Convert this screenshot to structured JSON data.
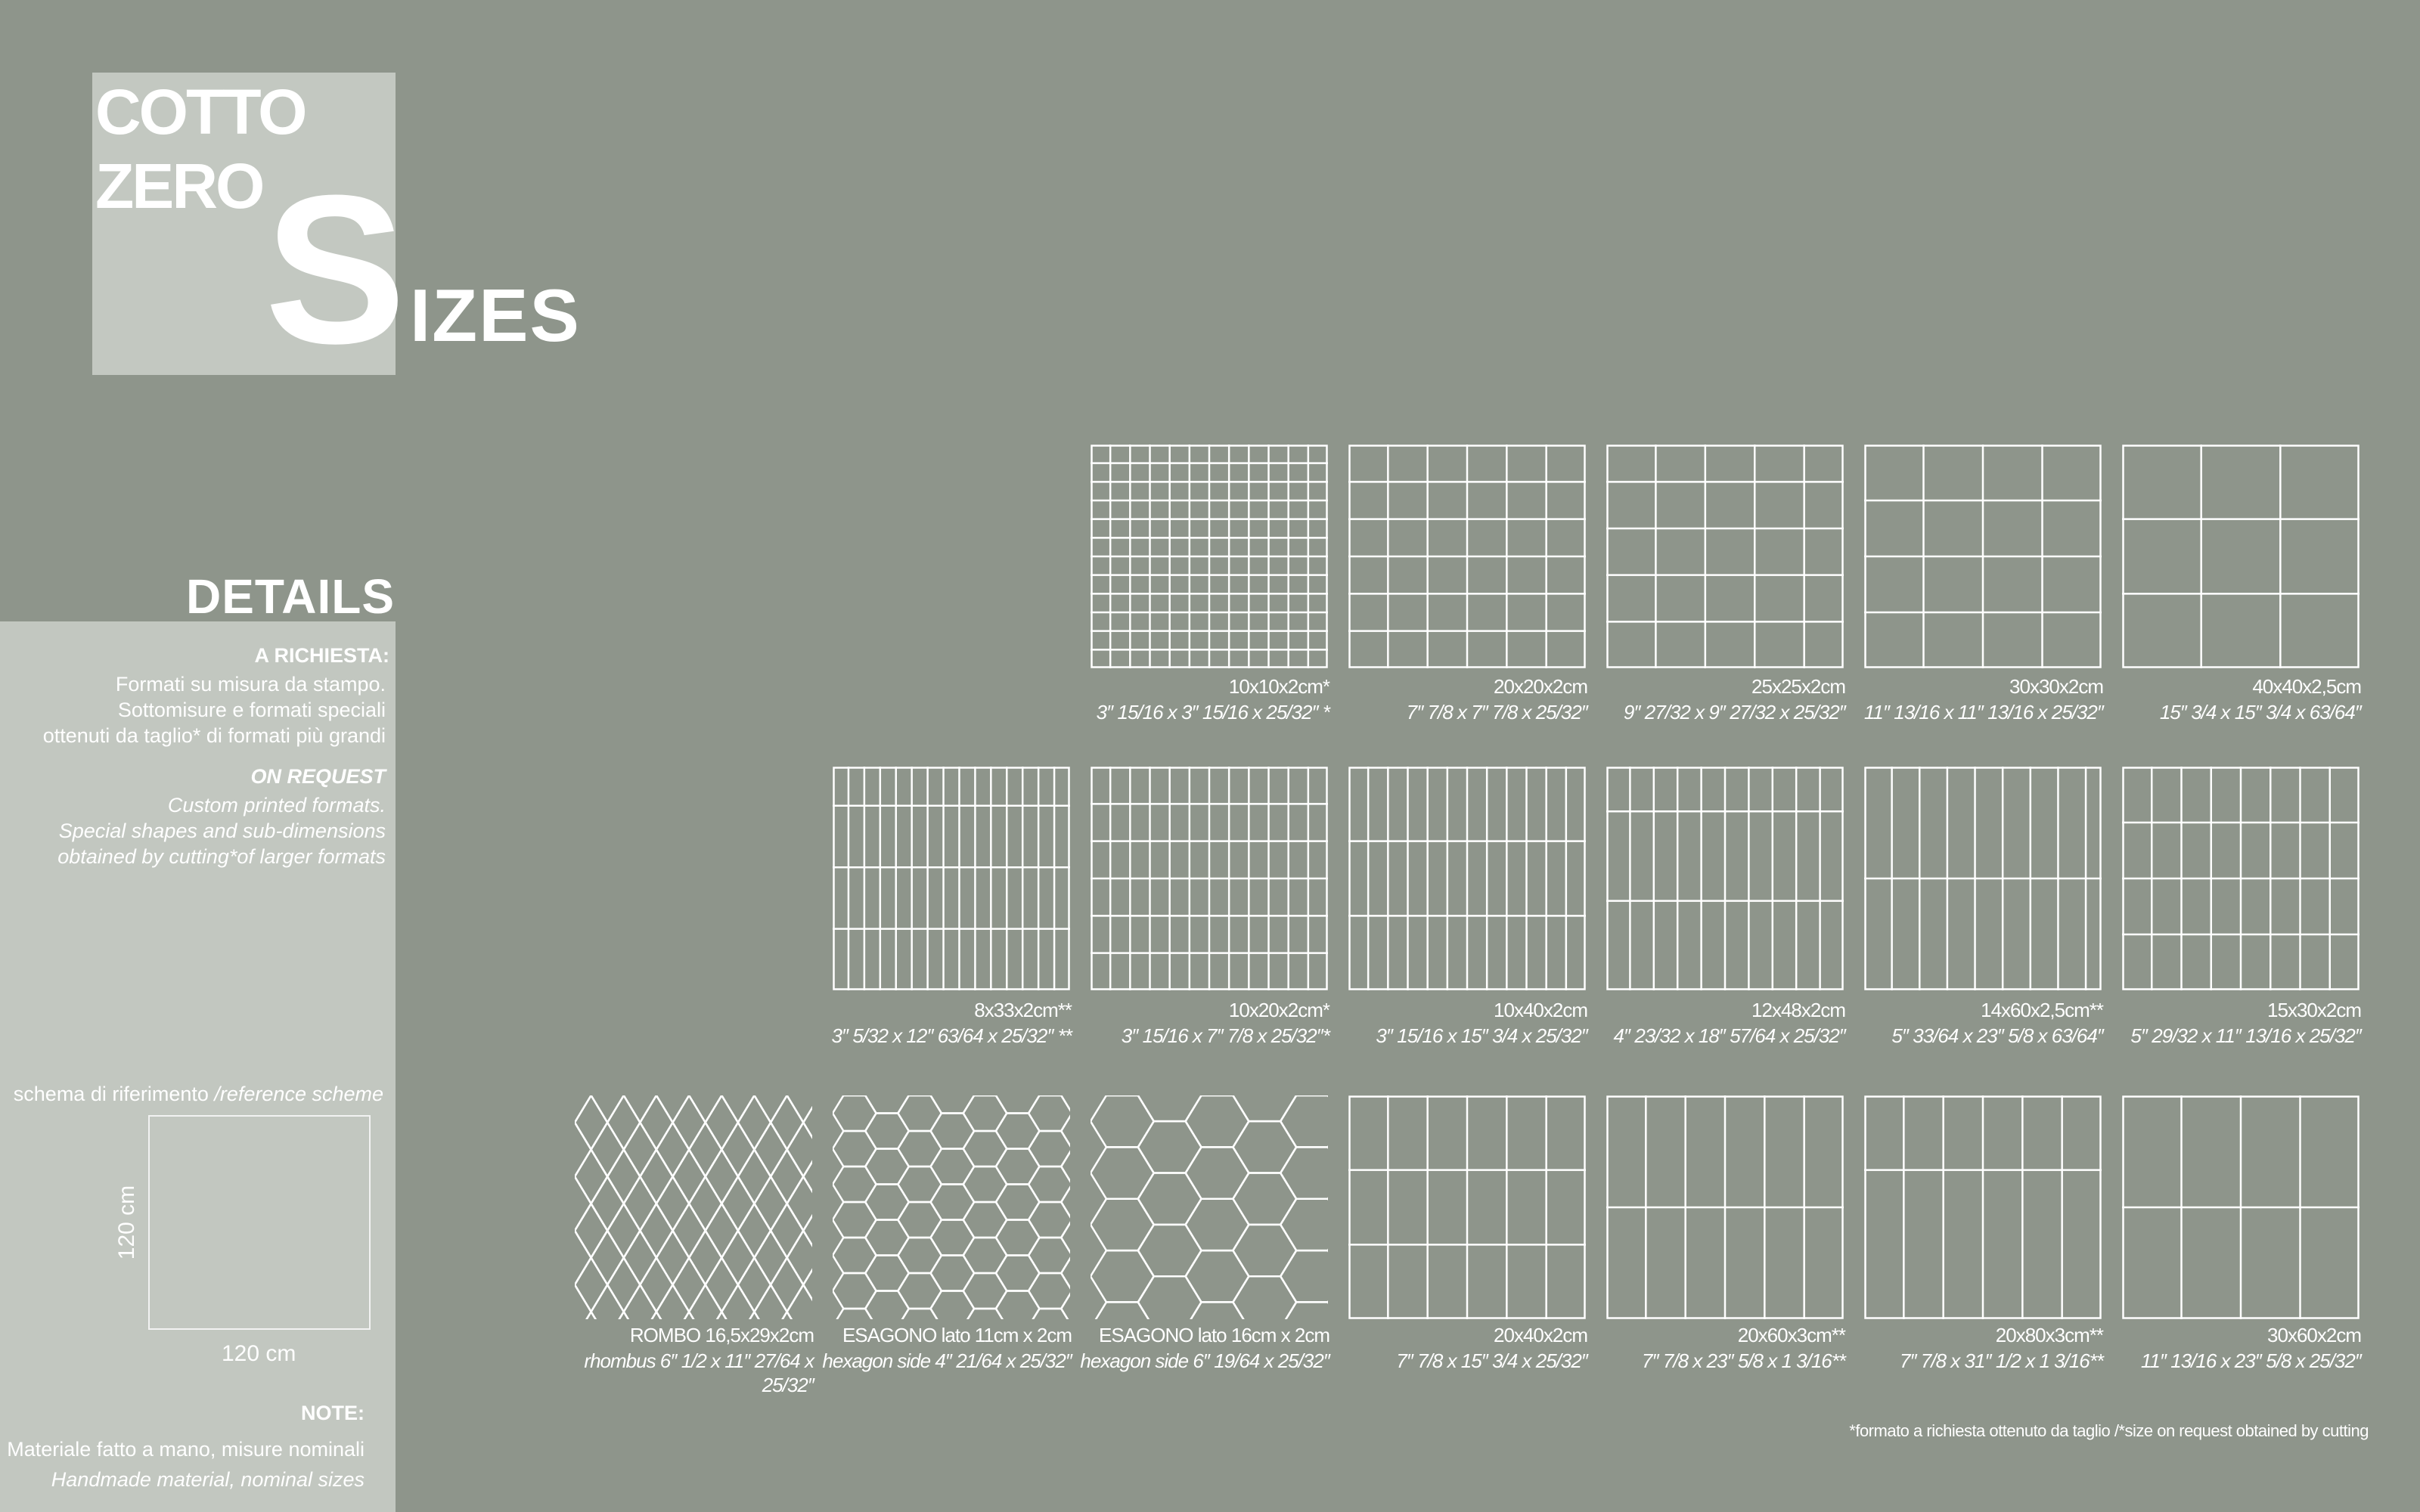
{
  "title": {
    "line1": "COTTO",
    "line2": "ZERO",
    "big_letter": "S",
    "rest": "IZES"
  },
  "details": {
    "heading": "DETAILS",
    "it_heading": "A RICHIESTA:",
    "it_lines": [
      "Formati su misura da stampo.",
      "Sottomisure e formati speciali",
      "ottenuti da taglio* di formati più grandi"
    ],
    "en_heading": "ON REQUEST",
    "en_lines": [
      "Custom printed formats.",
      "Special shapes and sub-dimensions",
      "obtained by cutting*of larger formats"
    ]
  },
  "reference": {
    "label_it": "schema di riferimento ",
    "label_en": "/reference scheme",
    "side_cm": 120,
    "height_label": "120 cm",
    "width_label": "120 cm"
  },
  "note": {
    "heading": "NOTE:",
    "it": "Materiale fatto a mano, misure nominali",
    "en": "Handmade material, nominal sizes"
  },
  "colors": {
    "background": "#8e958b",
    "panel": "#c2c7c0",
    "lines": "#ffffff"
  },
  "rows": [
    [
      {
        "type": "grid",
        "w": 10,
        "h": 10,
        "label": "10x10x2cm*",
        "imperial": "3″ 15/16 x 3″ 15/16 x 25/32″ *"
      },
      {
        "type": "grid",
        "w": 20,
        "h": 20,
        "label": "20x20x2cm",
        "imperial": "7″ 7/8 x 7″ 7/8 x 25/32″"
      },
      {
        "type": "grid",
        "w": 25,
        "h": 25,
        "label": "25x25x2cm",
        "imperial": "9″ 27/32 x 9″ 27/32 x 25/32″"
      },
      {
        "type": "grid",
        "w": 30,
        "h": 30,
        "label": "30x30x2cm",
        "imperial": "11″ 13/16 x 11″ 13/16 x 25/32″"
      },
      {
        "type": "grid",
        "w": 40,
        "h": 40,
        "label": "40x40x2,5cm",
        "imperial": "15″ 3/4 x 15″ 3/4 x 63/64″"
      }
    ],
    [
      {
        "type": "grid",
        "w": 8,
        "h": 33,
        "label": "8x33x2cm**",
        "imperial": "3″ 5/32 x 12″ 63/64 x 25/32″ **"
      },
      {
        "type": "grid",
        "w": 10,
        "h": 20,
        "label": "10x20x2cm*",
        "imperial": "3″ 15/16 x 7″ 7/8 x 25/32″*"
      },
      {
        "type": "grid",
        "w": 10,
        "h": 40,
        "label": "10x40x2cm",
        "imperial": "3″ 15/16 x 15″ 3/4 x 25/32″"
      },
      {
        "type": "grid",
        "w": 12,
        "h": 48,
        "label": "12x48x2cm",
        "imperial": "4″ 23/32 x 18″ 57/64 x 25/32″"
      },
      {
        "type": "grid",
        "w": 14,
        "h": 60,
        "label": "14x60x2,5cm**",
        "imperial": "5″ 33/64 x 23″ 5/8 x 63/64″"
      },
      {
        "type": "grid",
        "w": 15,
        "h": 30,
        "label": "15x30x2cm",
        "imperial": "5″ 29/32 x 11″ 13/16 x 25/32″"
      }
    ],
    [
      {
        "type": "rhombus",
        "w": 16.5,
        "h": 29,
        "label": "ROMBO 16,5x29x2cm",
        "imperial": "rhombus 6″ 1/2 x 11″ 27/64 x 25/32″"
      },
      {
        "type": "hexagon",
        "side": 11,
        "label": "ESAGONO lato 11cm x 2cm",
        "imperial": "hexagon side 4″ 21/64 x 25/32″"
      },
      {
        "type": "hexagon",
        "side": 16,
        "label": "ESAGONO  lato 16cm x 2cm",
        "imperial": "hexagon side 6″ 19/64 x 25/32″"
      },
      {
        "type": "grid",
        "w": 20,
        "h": 40,
        "label": "20x40x2cm",
        "imperial": "7″ 7/8 x 15″ 3/4 x 25/32″"
      },
      {
        "type": "grid",
        "w": 20,
        "h": 60,
        "label": "20x60x3cm**",
        "imperial": "7″ 7/8 x  23″ 5/8 x 1 3/16**"
      },
      {
        "type": "grid",
        "w": 20,
        "h": 80,
        "label": "20x80x3cm**",
        "imperial": "7″ 7/8 x 31″ 1/2 x 1 3/16**"
      },
      {
        "type": "grid",
        "w": 30,
        "h": 60,
        "label": "30x60x2cm",
        "imperial": "11″ 13/16 x 23″ 5/8 x 25/32″"
      }
    ]
  ],
  "footnote": "*formato a richiesta ottenuto da taglio /*size on request obtained by cutting"
}
